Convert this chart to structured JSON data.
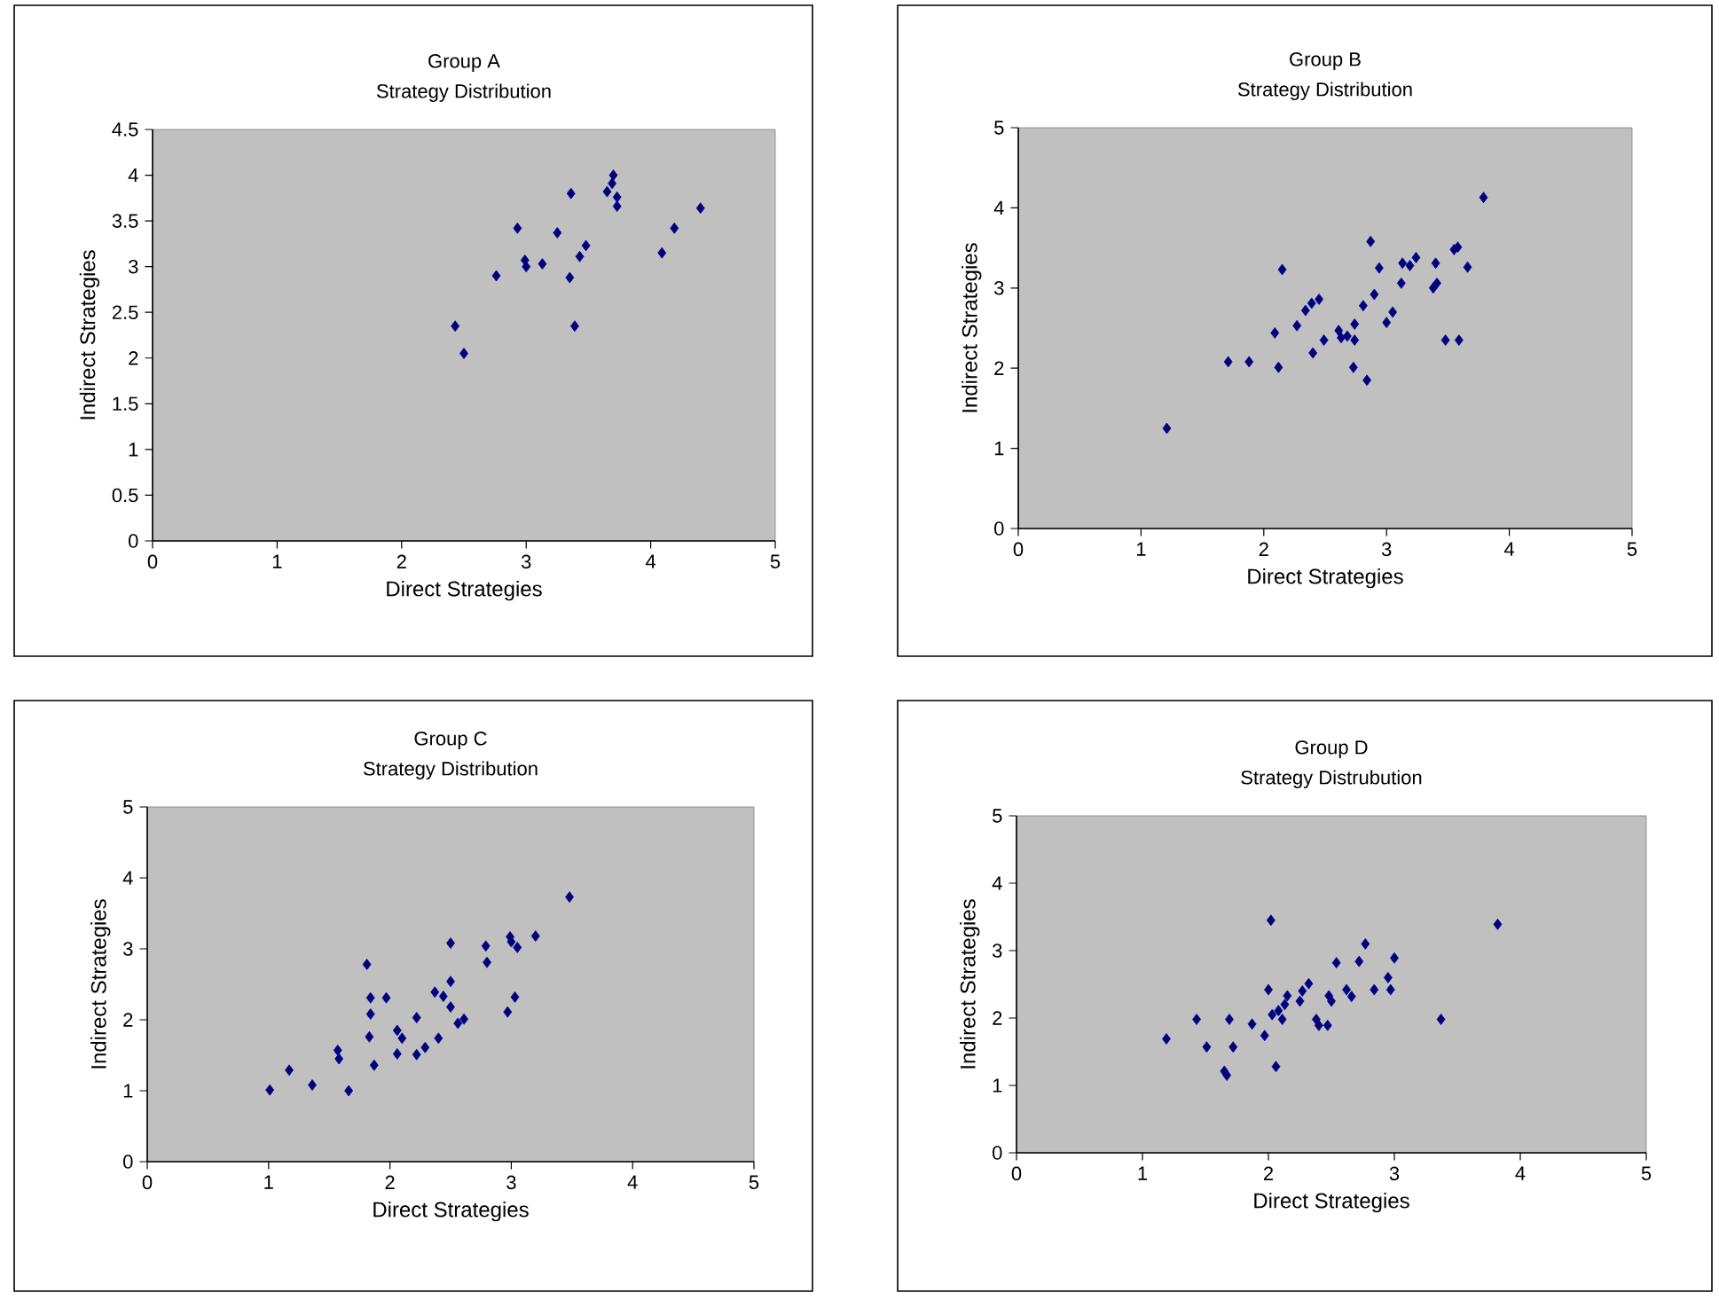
{
  "chart_data": [
    {
      "type": "scatter",
      "title": "Group A",
      "subtitle": "Strategy Distribution",
      "xlabel": "Direct Strategies",
      "ylabel": "Indirect Strategies",
      "color": "#000080",
      "marker": "diamond",
      "x": [
        2.43,
        2.5,
        2.76,
        2.93,
        2.99,
        3.0,
        3.13,
        3.25,
        3.36,
        3.35,
        3.39,
        3.43,
        3.48,
        3.69,
        3.7,
        3.73,
        3.73,
        3.65,
        4.09,
        4.19,
        4.4
      ],
      "values": [
        2.35,
        2.05,
        2.9,
        3.42,
        3.07,
        3.0,
        3.03,
        3.37,
        3.8,
        2.88,
        2.35,
        3.11,
        3.23,
        3.91,
        4.0,
        3.76,
        3.66,
        3.82,
        3.15,
        3.42,
        3.64
      ],
      "xlim": [
        0,
        5
      ],
      "ylim": [
        0,
        4.5
      ],
      "xticks": [
        0,
        1,
        2,
        3,
        4,
        5
      ],
      "yticks": [
        0,
        0.5,
        1,
        1.5,
        2,
        2.5,
        3,
        3.5,
        4,
        4.5
      ]
    },
    {
      "type": "scatter",
      "title": "Group B",
      "subtitle": "Strategy Distribution",
      "xlabel": "Direct Strategies",
      "ylabel": "Indirect Strategies",
      "color": "#000080",
      "marker": "diamond",
      "x": [
        1.21,
        1.71,
        1.88,
        2.09,
        2.12,
        2.15,
        2.27,
        2.34,
        2.39,
        2.45,
        2.4,
        2.49,
        2.61,
        2.63,
        2.68,
        2.74,
        2.74,
        2.73,
        2.81,
        2.84,
        2.87,
        2.9,
        2.94,
        3.0,
        3.05,
        3.12,
        3.13,
        3.19,
        3.24,
        3.4,
        3.38,
        3.41,
        3.55,
        3.58,
        3.66,
        3.48,
        3.59,
        3.79
      ],
      "values": [
        1.25,
        2.08,
        2.08,
        2.44,
        2.01,
        3.23,
        2.53,
        2.72,
        2.81,
        2.86,
        2.19,
        2.35,
        2.47,
        2.38,
        2.4,
        2.55,
        2.35,
        2.01,
        2.78,
        1.85,
        3.58,
        2.92,
        3.25,
        2.57,
        2.7,
        3.06,
        3.31,
        3.28,
        3.38,
        3.31,
        3.0,
        3.06,
        3.48,
        3.51,
        3.26,
        2.35,
        2.35,
        4.13
      ],
      "xlim": [
        0,
        5
      ],
      "ylim": [
        0,
        5
      ],
      "xticks": [
        0,
        1,
        2,
        3,
        4,
        5
      ],
      "yticks": [
        0,
        1,
        2,
        3,
        4,
        5
      ]
    },
    {
      "type": "scatter",
      "title": "Group C",
      "subtitle": "Strategy Distribution",
      "xlabel": "Direct Strategies",
      "ylabel": "Indirect Strategies",
      "color": "#000080",
      "marker": "diamond",
      "x": [
        1.01,
        1.17,
        1.36,
        1.57,
        1.58,
        1.66,
        1.81,
        1.84,
        1.97,
        1.84,
        1.83,
        1.87,
        2.06,
        2.1,
        2.06,
        2.22,
        2.22,
        2.29,
        2.4,
        2.37,
        2.44,
        2.5,
        2.5,
        2.5,
        2.56,
        2.61,
        2.79,
        2.8,
        2.97,
        3.03,
        2.99,
        3.0,
        3.05,
        3.2,
        3.48
      ],
      "values": [
        1.01,
        1.29,
        1.08,
        1.57,
        1.45,
        1.0,
        2.78,
        2.31,
        2.31,
        2.08,
        1.76,
        1.36,
        1.85,
        1.74,
        1.52,
        2.03,
        1.51,
        1.61,
        1.74,
        2.39,
        2.33,
        2.54,
        2.18,
        3.08,
        1.95,
        2.01,
        3.04,
        2.81,
        2.11,
        2.32,
        3.17,
        3.1,
        3.02,
        3.18,
        3.73
      ],
      "xlim": [
        0,
        5
      ],
      "ylim": [
        0,
        5
      ],
      "xticks": [
        0,
        1,
        2,
        3,
        4,
        5
      ],
      "yticks": [
        0,
        1,
        2,
        3,
        4,
        5
      ]
    },
    {
      "type": "scatter",
      "title": "Group D",
      "subtitle": "Strategy Distrubution",
      "xlabel": "Direct Strategies",
      "ylabel": "Indirect Strategies",
      "color": "#000080",
      "marker": "diamond",
      "x": [
        1.19,
        1.43,
        1.51,
        1.65,
        1.67,
        1.69,
        1.72,
        1.87,
        1.97,
        2.0,
        2.02,
        2.06,
        2.03,
        2.08,
        2.11,
        2.13,
        2.15,
        2.25,
        2.27,
        2.32,
        2.38,
        2.4,
        2.47,
        2.48,
        2.5,
        2.54,
        2.62,
        2.66,
        2.72,
        2.77,
        2.84,
        2.95,
        2.97,
        3.0,
        3.37,
        3.82
      ],
      "values": [
        1.69,
        1.98,
        1.57,
        1.21,
        1.15,
        1.98,
        1.57,
        1.91,
        1.74,
        2.42,
        3.45,
        1.28,
        2.05,
        2.11,
        1.98,
        2.2,
        2.33,
        2.25,
        2.4,
        2.51,
        1.98,
        1.89,
        1.89,
        2.33,
        2.25,
        2.82,
        2.42,
        2.32,
        2.84,
        3.1,
        2.42,
        2.6,
        2.42,
        2.89,
        1.98,
        3.39
      ],
      "xlim": [
        0,
        5
      ],
      "ylim": [
        0,
        5
      ],
      "xticks": [
        0,
        1,
        2,
        3,
        4,
        5
      ],
      "yticks": [
        0,
        1,
        2,
        3,
        4,
        5
      ]
    }
  ]
}
